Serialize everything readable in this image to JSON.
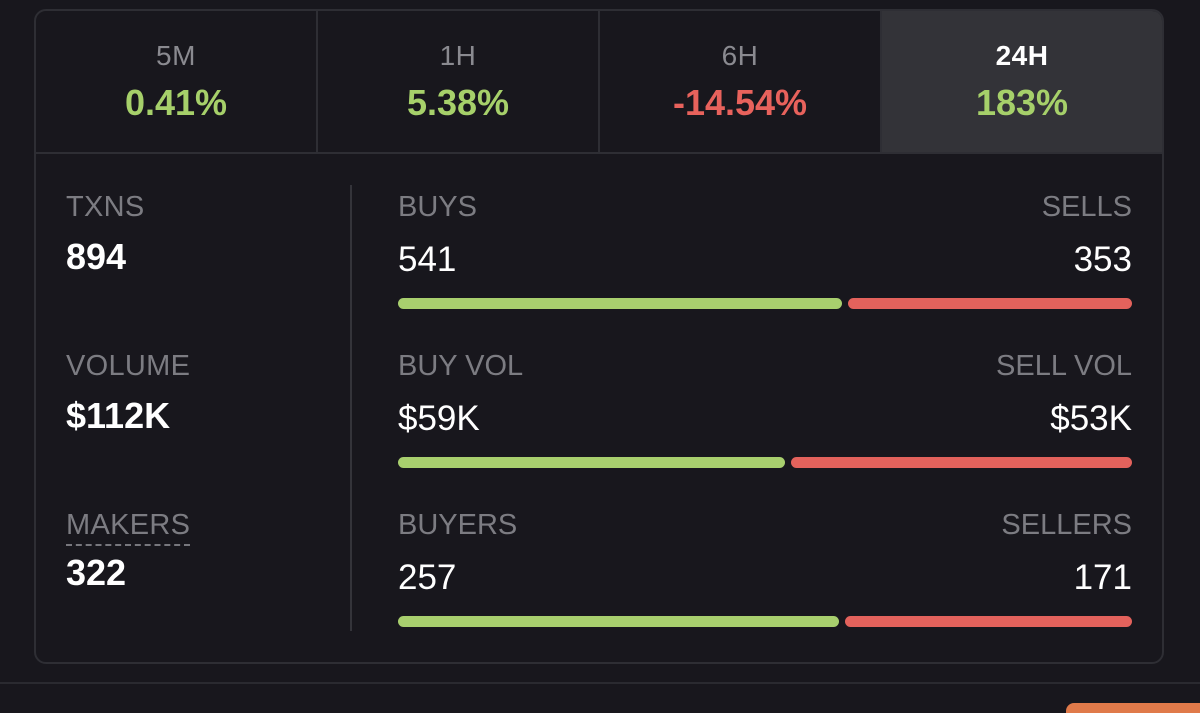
{
  "timeframes": [
    {
      "label": "5M",
      "change": "0.41%",
      "direction": "positive",
      "active": false
    },
    {
      "label": "1H",
      "change": "5.38%",
      "direction": "positive",
      "active": false
    },
    {
      "label": "6H",
      "change": "-14.54%",
      "direction": "negative",
      "active": false
    },
    {
      "label": "24H",
      "change": "183%",
      "direction": "positive",
      "active": true
    }
  ],
  "summary": {
    "txns": {
      "label": "TXNS",
      "value": "894"
    },
    "volume": {
      "label": "VOLUME",
      "value": "$112K"
    },
    "makers": {
      "label": "MAKERS",
      "value": "322"
    }
  },
  "breakdown": [
    {
      "left_label": "BUYS",
      "left_value": "541",
      "right_label": "SELLS",
      "right_value": "353",
      "buy_share": 0.605
    },
    {
      "left_label": "BUY VOL",
      "left_value": "$59K",
      "right_label": "SELL VOL",
      "right_value": "$53K",
      "buy_share": 0.527
    },
    {
      "left_label": "BUYERS",
      "left_value": "257",
      "right_label": "SELLERS",
      "right_value": "171",
      "buy_share": 0.601
    }
  ],
  "colors": {
    "positive": "#a6d06a",
    "negative": "#e8625c",
    "background": "#18171d",
    "active_tab": "#333338",
    "border": "#2e2e34"
  }
}
